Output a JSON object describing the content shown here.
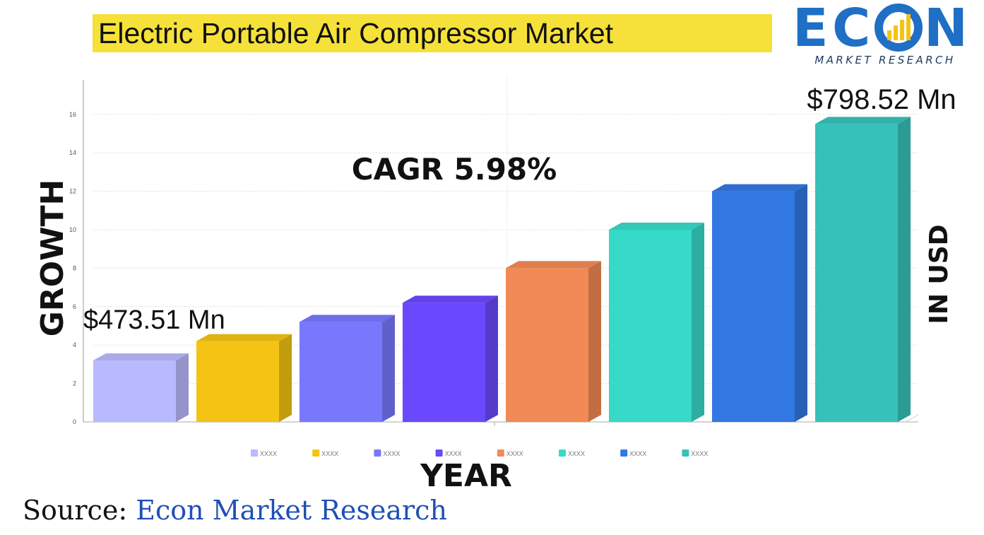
{
  "header": {
    "title": "Electric Portable Air Compressor Market"
  },
  "logo": {
    "letters": [
      "E",
      "C",
      "N"
    ],
    "icon": "growth-bars-in-o-icon",
    "subtitle": "MARKET RESEARCH"
  },
  "labels": {
    "left_axis": "GROWTH",
    "right_axis": "IN USD",
    "x_axis": "YEAR",
    "cagr": "CAGR 5.98%",
    "first_value": "$473.51 Mn",
    "last_value": "$798.52 Mn"
  },
  "source": {
    "prefix": "Source:",
    "name": "Econ Market Research"
  },
  "colors": {
    "title_bg": "#f5e13a",
    "logo_blue": "#1f6fc5",
    "logo_yellow": "#f2c418",
    "source_blue": "#1f4fb5"
  },
  "chart_data": {
    "type": "bar",
    "ylim": [
      0,
      17
    ],
    "yticks": [
      0,
      2,
      4,
      6,
      8,
      10,
      12,
      14,
      16
    ],
    "grid": true,
    "legend": "bottom",
    "categories": [
      "XXXX",
      "XXXX",
      "XXXX",
      "XXXX",
      "XXXX",
      "XXXX",
      "XXXX",
      "XXXX"
    ],
    "values": [
      3.2,
      4.2,
      5.2,
      6.2,
      8.0,
      10.0,
      12.0,
      15.5
    ],
    "colors": [
      "#b9b9fd",
      "#f4c314",
      "#7878fd",
      "#6a48fd",
      "#f28a55",
      "#37d9c8",
      "#3278e2",
      "#36c2ba"
    ]
  }
}
